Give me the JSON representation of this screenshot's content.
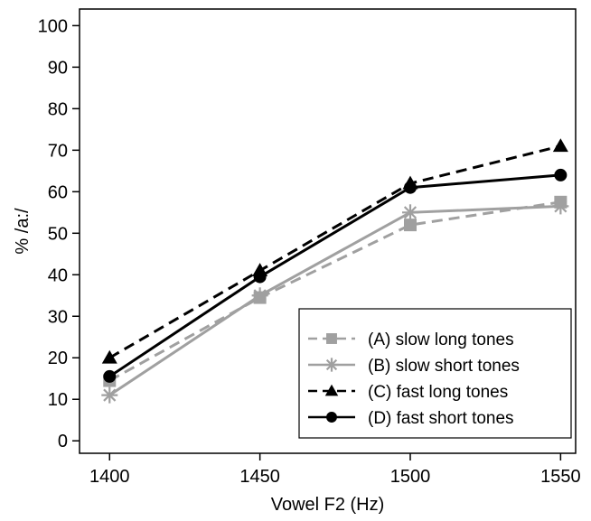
{
  "chart_data": {
    "type": "line",
    "title": "",
    "xlabel": "Vowel F2 (Hz)",
    "ylabel": "% /a:/",
    "x": [
      1400,
      1450,
      1500,
      1550
    ],
    "xticks": [
      "1400",
      "1450",
      "1500",
      "1550"
    ],
    "xlim": [
      1390,
      1555
    ],
    "ylim": [
      -3,
      104
    ],
    "yticks": [
      "0",
      "10",
      "20",
      "30",
      "40",
      "50",
      "60",
      "70",
      "80",
      "90",
      "100"
    ],
    "grid": false,
    "legend_position": "bottom-right",
    "series": [
      {
        "name": "(A) slow long tones",
        "values": [
          14.5,
          34.5,
          52,
          57.5
        ],
        "color": "#a0a0a0",
        "dash": true,
        "marker": "square"
      },
      {
        "name": "(B) slow short tones",
        "values": [
          11,
          35,
          55,
          56.5
        ],
        "color": "#a0a0a0",
        "dash": false,
        "marker": "asterisk"
      },
      {
        "name": "(C) fast long tones",
        "values": [
          20,
          41,
          62,
          71
        ],
        "color": "#000000",
        "dash": true,
        "marker": "triangle"
      },
      {
        "name": "(D) fast short tones",
        "values": [
          15.5,
          39.5,
          61,
          64
        ],
        "color": "#000000",
        "dash": false,
        "marker": "circle"
      }
    ]
  }
}
